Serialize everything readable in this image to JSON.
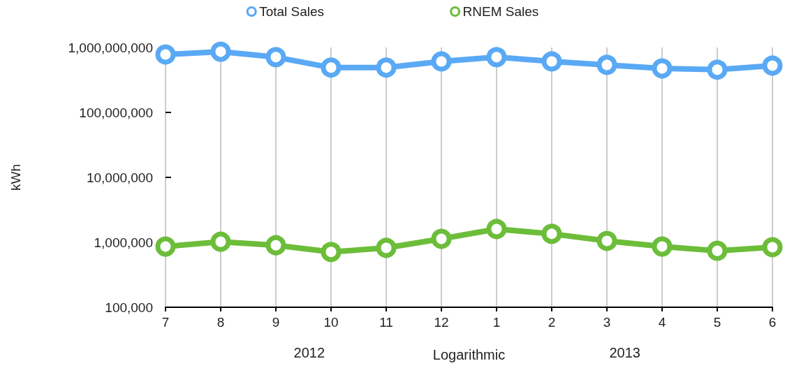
{
  "chart_data": {
    "type": "line",
    "ylabel": "kWh",
    "xlabel": "Logarithmic",
    "annotations": [
      "2012",
      "2013"
    ],
    "categories": [
      "7",
      "8",
      "9",
      "10",
      "11",
      "12",
      "1",
      "2",
      "3",
      "4",
      "5",
      "6"
    ],
    "series": [
      {
        "name": "Total Sales",
        "color": "#5aa9f5",
        "values": [
          780000000,
          860000000,
          710000000,
          490000000,
          490000000,
          610000000,
          710000000,
          610000000,
          540000000,
          475000000,
          455000000,
          525000000
        ]
      },
      {
        "name": "RNEM Sales",
        "color": "#6cbd3a",
        "values": [
          860000,
          1020000,
          900000,
          710000,
          820000,
          1130000,
          1600000,
          1350000,
          1050000,
          860000,
          740000,
          840000
        ]
      }
    ],
    "log": true,
    "ylim": [
      100000,
      1000000000
    ],
    "yticks": [
      {
        "value": 100000,
        "label": "100,000"
      },
      {
        "value": 1000000,
        "label": "1,000,000"
      },
      {
        "value": 10000000,
        "label": "10,000,000"
      },
      {
        "value": 100000000,
        "label": "100,000,000"
      },
      {
        "value": 1000000000,
        "label": "1,000,000,000"
      }
    ],
    "grid": "x",
    "legend": "top",
    "marker": "circle",
    "line_style": "solid"
  }
}
